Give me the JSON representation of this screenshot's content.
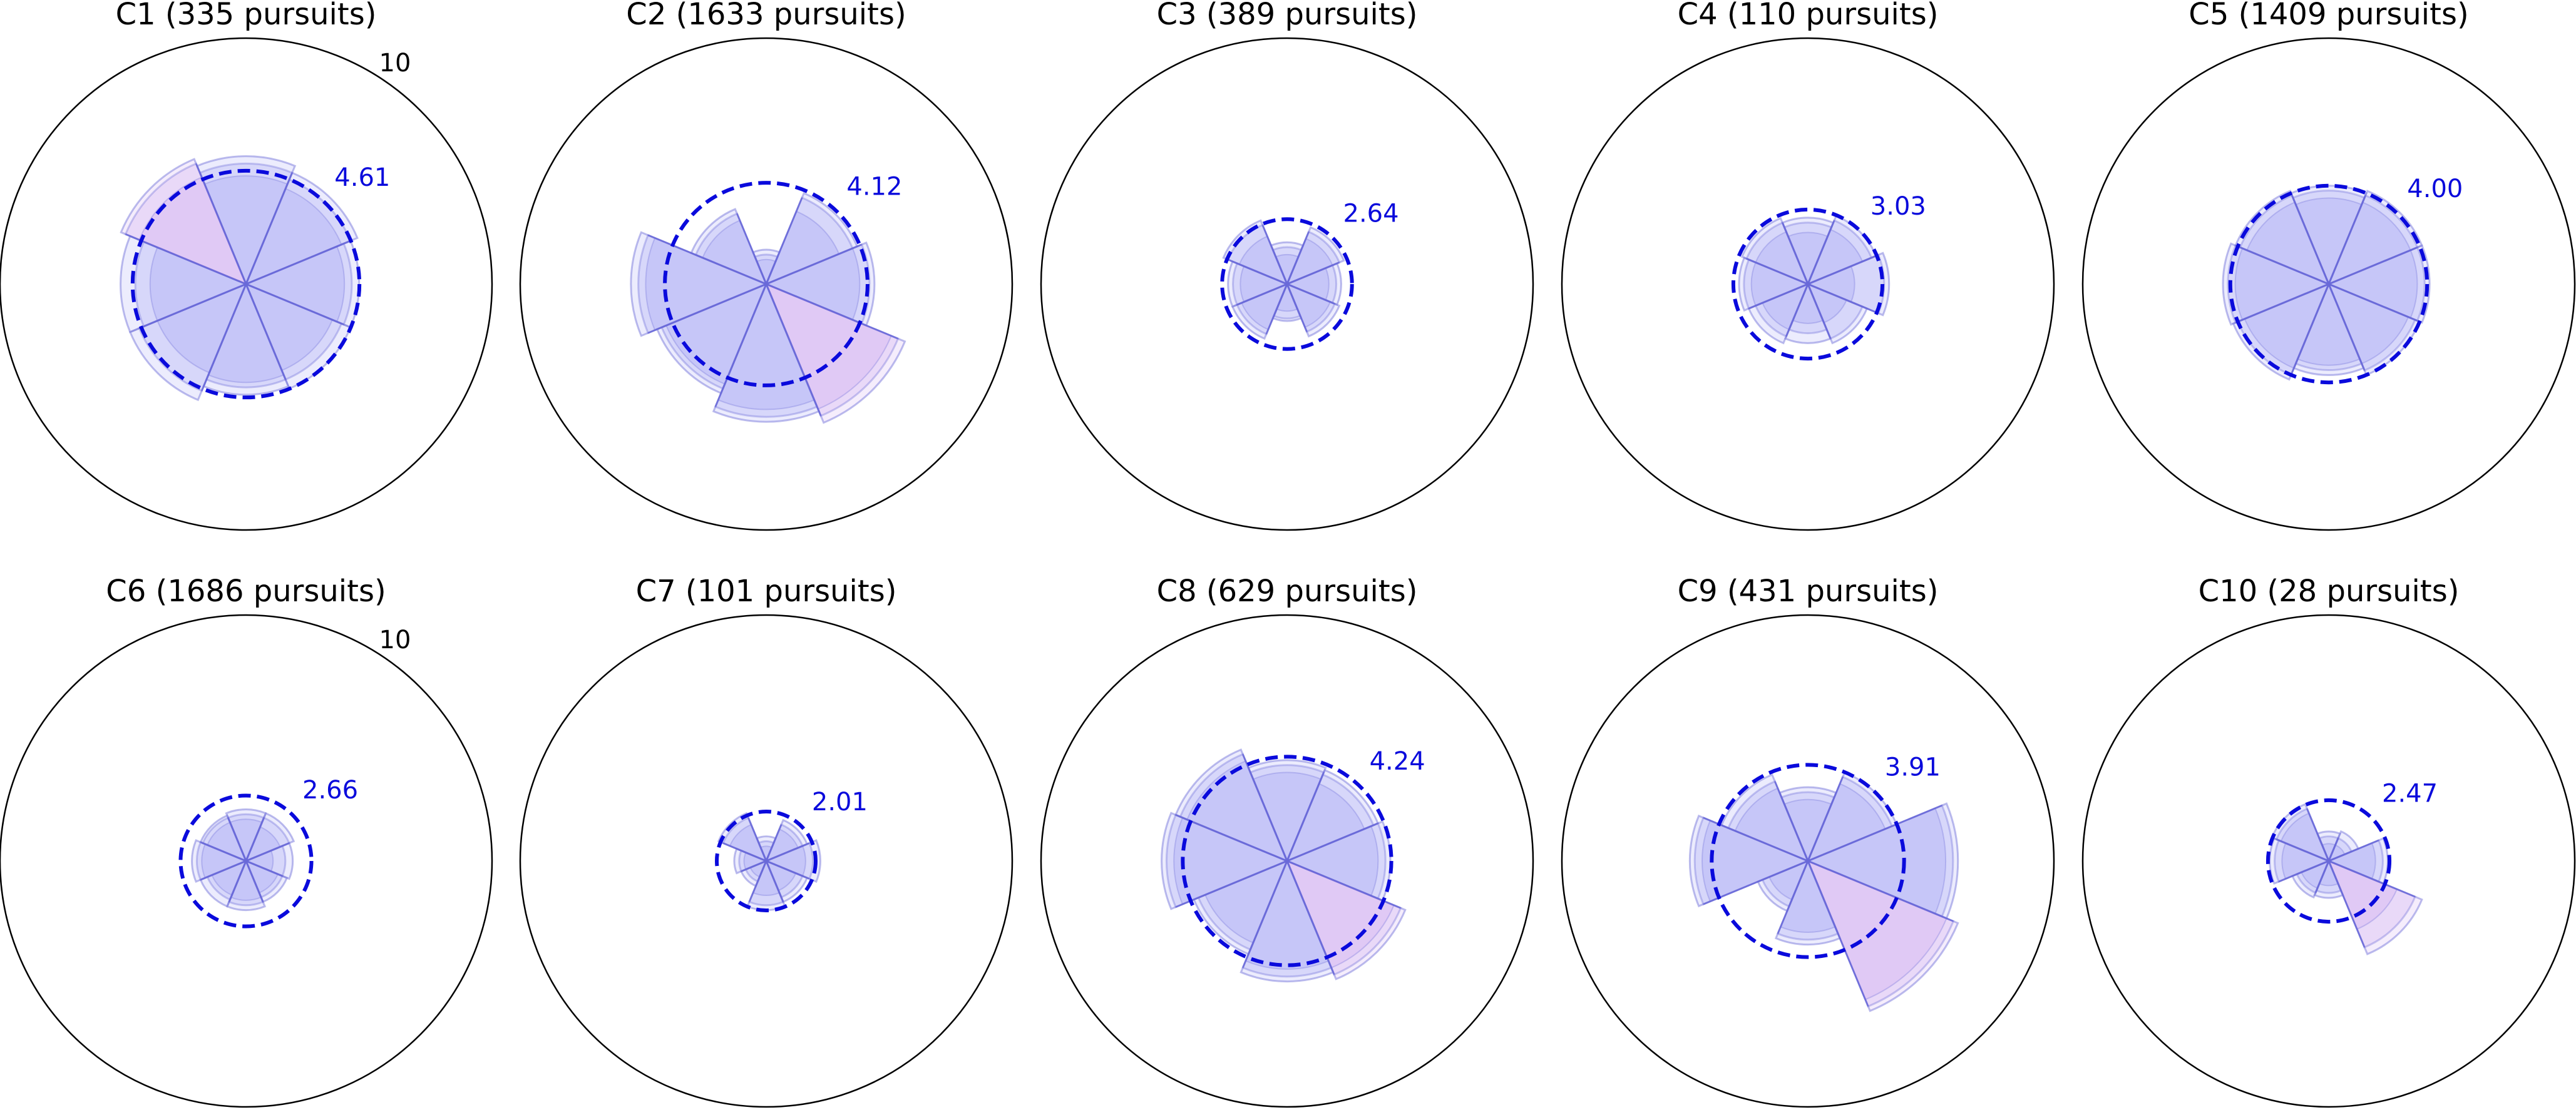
{
  "chart_data": {
    "type": "polar-bar",
    "rmax": 10,
    "rmax_label": "10",
    "colors": {
      "fill": "#7b7bf0",
      "fill_high": "#b77de8",
      "edge": "#6a6ad8",
      "mean": "#0a0adc",
      "outline": "#000000"
    },
    "panels": [
      {
        "title": "C1 (335 pursuits)",
        "mean": 4.61,
        "mean_label": "4.61",
        "show_rmax_label": true,
        "sectors": [
          [
            4.4,
            4.9,
            5.2
          ],
          [
            4.2,
            4.6,
            4.9
          ],
          [
            4.0,
            4.3,
            4.6
          ],
          [
            3.8,
            4.2,
            4.6
          ],
          [
            4.0,
            4.2,
            4.5
          ],
          [
            3.9,
            4.7,
            5.1
          ],
          [
            3.9,
            4.5,
            5.1
          ],
          [
            4.7,
            5.3,
            5.5
          ]
        ]
      },
      {
        "title": "C2 (1633 pursuits)",
        "mean": 4.12,
        "mean_label": "4.12",
        "show_rmax_label": false,
        "sectors": [
          [
            1.0,
            1.2,
            1.4
          ],
          [
            3.2,
            3.8,
            4.0
          ],
          [
            3.8,
            4.2,
            4.4
          ],
          [
            5.5,
            5.8,
            6.1
          ],
          [
            5.1,
            5.4,
            5.6
          ],
          [
            4.4,
            4.6,
            4.8
          ],
          [
            4.9,
            5.2,
            5.5
          ],
          [
            2.8,
            3.1,
            3.3
          ]
        ]
      },
      {
        "title": "C3 (389 pursuits)",
        "mean": 2.64,
        "mean_label": "2.64",
        "show_rmax_label": false,
        "sectors": [
          [
            1.2,
            1.5,
            1.7
          ],
          [
            2.0,
            2.3,
            2.5
          ],
          [
            1.7,
            2.0,
            2.2
          ],
          [
            1.9,
            2.1,
            2.3
          ],
          [
            1.1,
            1.4,
            1.5
          ],
          [
            2.0,
            2.2,
            2.4
          ],
          [
            1.9,
            2.2,
            2.4
          ],
          [
            2.1,
            2.6,
            2.8
          ]
        ]
      },
      {
        "title": "C4 (110 pursuits)",
        "mean": 3.03,
        "mean_label": "3.03",
        "show_rmax_label": false,
        "sectors": [
          [
            2.1,
            2.5,
            2.7
          ],
          [
            2.4,
            2.8,
            3.0
          ],
          [
            1.9,
            3.1,
            3.3
          ],
          [
            1.7,
            2.4,
            2.6
          ],
          [
            1.6,
            2.0,
            2.4
          ],
          [
            2.0,
            2.3,
            2.6
          ],
          [
            2.3,
            2.6,
            2.8
          ],
          [
            2.3,
            2.7,
            2.9
          ]
        ]
      },
      {
        "title": "C5 (1409 pursuits)",
        "mean": 4.0,
        "mean_label": "4.00",
        "show_rmax_label": false,
        "sectors": [
          [
            3.5,
            3.8,
            4.0
          ],
          [
            3.6,
            3.9,
            4.1
          ],
          [
            3.6,
            3.9,
            4.1
          ],
          [
            3.5,
            3.8,
            4.0
          ],
          [
            3.3,
            3.5,
            3.7
          ],
          [
            3.7,
            4.0,
            4.2
          ],
          [
            3.8,
            4.1,
            4.3
          ],
          [
            3.6,
            3.9,
            4.1
          ]
        ]
      },
      {
        "title": "C6 (1686 pursuits)",
        "mean": 2.66,
        "mean_label": "2.66",
        "show_rmax_label": true,
        "sectors": [
          [
            1.7,
            1.9,
            2.1
          ],
          [
            1.5,
            1.9,
            2.1
          ],
          [
            1.1,
            1.6,
            1.9
          ],
          [
            1.4,
            1.6,
            1.8
          ],
          [
            1.6,
            1.8,
            2.0
          ],
          [
            1.5,
            1.7,
            2.0
          ],
          [
            1.8,
            2.0,
            2.2
          ],
          [
            1.7,
            1.9,
            2.0
          ]
        ]
      },
      {
        "title": "C7 (101 pursuits)",
        "mean": 2.01,
        "mean_label": "2.01",
        "show_rmax_label": false,
        "sectors": [
          [
            0.6,
            0.8,
            1.0
          ],
          [
            1.4,
            1.6,
            1.8
          ],
          [
            1.6,
            1.9,
            2.2
          ],
          [
            1.3,
            1.6,
            1.8
          ],
          [
            1.4,
            1.8,
            2.0
          ],
          [
            0.7,
            0.9,
            1.1
          ],
          [
            0.9,
            1.1,
            1.3
          ],
          [
            1.6,
            1.9,
            2.1
          ]
        ]
      },
      {
        "title": "C8 (629 pursuits)",
        "mean": 4.24,
        "mean_label": "4.24",
        "show_rmax_label": false,
        "sectors": [
          [
            3.6,
            3.9,
            4.1
          ],
          [
            3.4,
            3.8,
            4.0
          ],
          [
            3.7,
            4.0,
            4.2
          ],
          [
            4.7,
            5.0,
            5.2
          ],
          [
            4.4,
            4.7,
            4.9
          ],
          [
            3.6,
            3.9,
            4.1
          ],
          [
            4.6,
            4.9,
            5.1
          ],
          [
            4.4,
            4.7,
            4.9
          ]
        ]
      },
      {
        "title": "C9 (431 pursuits)",
        "mean": 3.91,
        "mean_label": "3.91",
        "show_rmax_label": false,
        "sectors": [
          [
            2.5,
            2.8,
            3.0
          ],
          [
            3.4,
            3.7,
            3.9
          ],
          [
            5.6,
            5.9,
            6.1
          ],
          [
            6.1,
            6.4,
            6.6
          ],
          [
            2.9,
            3.2,
            3.4
          ],
          [
            1.7,
            2.0,
            2.2
          ],
          [
            4.3,
            4.6,
            4.8
          ],
          [
            3.2,
            3.5,
            3.8
          ]
        ]
      },
      {
        "title": "C10 (28 pursuits)",
        "mean": 2.47,
        "mean_label": "2.47",
        "show_rmax_label": false,
        "sectors": [
          [
            0.7,
            1.0,
            1.2
          ],
          [
            0.7,
            1.0,
            1.3
          ],
          [
            1.9,
            2.2,
            2.4
          ],
          [
            3.0,
            3.8,
            4.1
          ],
          [
            1.0,
            1.3,
            1.5
          ],
          [
            1.2,
            1.4,
            1.6
          ],
          [
            1.9,
            2.2,
            2.4
          ],
          [
            2.1,
            2.3,
            2.5
          ]
        ]
      }
    ]
  }
}
